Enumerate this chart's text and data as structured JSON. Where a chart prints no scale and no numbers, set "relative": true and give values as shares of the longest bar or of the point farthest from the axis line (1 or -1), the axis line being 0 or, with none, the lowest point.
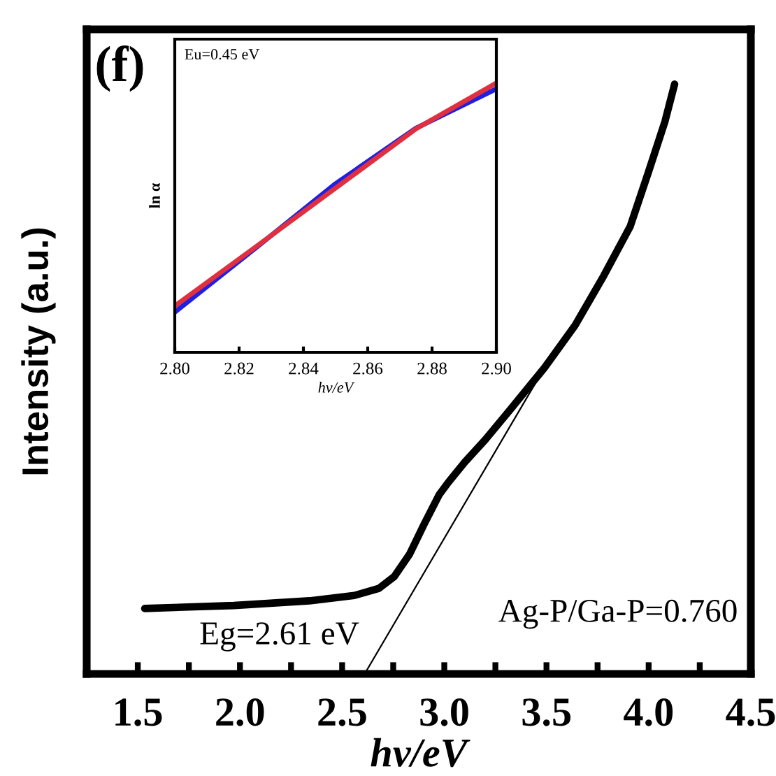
{
  "chart_data": [
    {
      "type": "line",
      "relative": true,
      "xlabel": "hv/eV",
      "ylabel": "Intensity (a.u.)",
      "xlim": [
        1.25,
        4.5
      ],
      "xticks": [
        1.5,
        {
          "value": 1.75,
          "label": null
        },
        {
          "value": 2,
          "label": "2.0"
        },
        {
          "value": 2.25,
          "label": null
        },
        2.5,
        {
          "value": 2.75,
          "label": null
        },
        {
          "value": 3,
          "label": "3.0"
        },
        {
          "value": 3.25,
          "label": null
        },
        3.5,
        {
          "value": 3.75,
          "label": null
        },
        {
          "value": 4,
          "label": "4.0"
        },
        {
          "value": 4.25,
          "label": null
        },
        4.5
      ],
      "tick_labels": "x",
      "grid": false,
      "legend": false,
      "marker": "none",
      "annotations": [
        "(f)",
        "Eg=2.61 eV",
        "Ag-P/Ga-P=0.760"
      ],
      "series": [
        {
          "color": "#000000",
          "x": [
            1.534,
            1.97,
            2.34,
            2.56,
            2.68,
            2.755,
            2.83,
            2.9,
            2.975,
            3.02,
            3.1,
            3.2,
            3.32,
            3.49,
            3.64,
            3.78,
            3.91,
            4.0,
            4.08,
            4.127
          ],
          "values": [
            0.111,
            0.116,
            0.124,
            0.133,
            0.145,
            0.165,
            0.203,
            0.253,
            0.304,
            0.325,
            0.359,
            0.397,
            0.447,
            0.519,
            0.591,
            0.675,
            0.759,
            0.852,
            0.937,
            1.0
          ]
        },
        {
          "color": "#000000",
          "x": [
            2.61,
            3.49
          ],
          "values": [
            0,
            0.519
          ]
        }
      ]
    },
    {
      "type": "line",
      "relative": true,
      "xlabel": "hv/eV",
      "ylabel": "ln α",
      "xlim": [
        2.8,
        2.9
      ],
      "xticks": [
        {
          "value": 2.8,
          "label": "2.80"
        },
        2.82,
        2.84,
        2.86,
        2.88,
        {
          "value": 2.9,
          "label": "2.90"
        }
      ],
      "tick_labels": "x",
      "grid": false,
      "legend": false,
      "marker": "none",
      "annotations": [
        "Eu=0.45 eV"
      ],
      "series": [
        {
          "color": "#2020e0",
          "x": [
            2.8,
            2.825,
            2.85,
            2.875,
            2.9
          ],
          "values": [
            0.149,
            0.386,
            0.626,
            0.832,
            0.978
          ]
        },
        {
          "color": "#e03040",
          "x": [
            2.8,
            2.825,
            2.85,
            2.875,
            2.9
          ],
          "values": [
            0.172,
            0.39,
            0.61,
            0.83,
            1.0
          ]
        }
      ]
    }
  ]
}
